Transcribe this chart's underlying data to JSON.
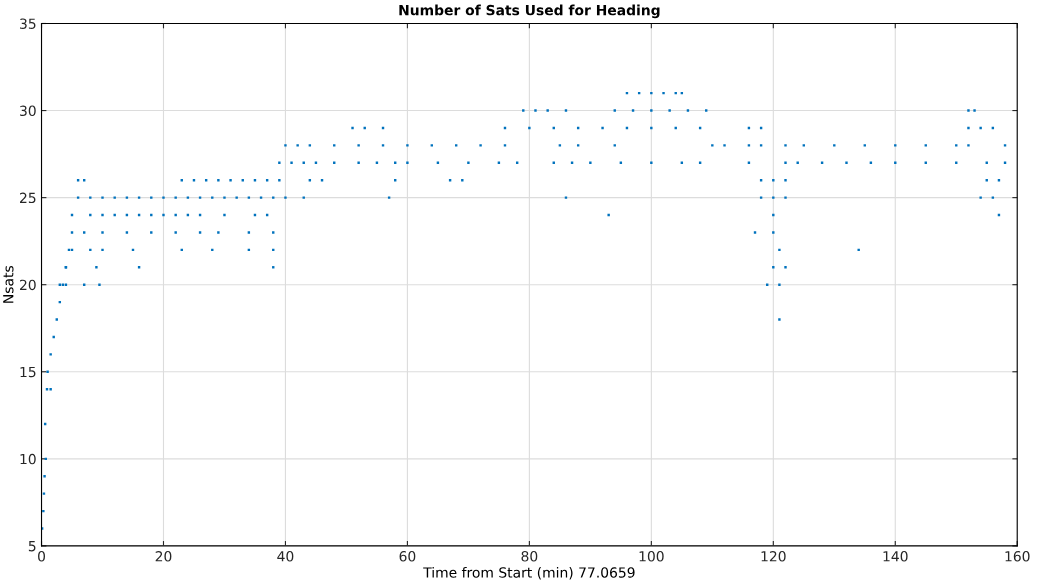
{
  "chart_data": {
    "type": "scatter",
    "title": "Number of Sats Used for Heading",
    "xlabel": "Time from Start (min) 77.0659",
    "ylabel": "Nsats",
    "xlim": [
      0,
      160
    ],
    "ylim": [
      5,
      35
    ],
    "xticks": [
      0,
      20,
      40,
      60,
      80,
      100,
      120,
      140,
      160
    ],
    "yticks": [
      5,
      10,
      15,
      20,
      25,
      30,
      35
    ],
    "grid": true,
    "marker": "square",
    "series": [
      {
        "color": "#0072bd",
        "x": [
          0.1,
          0.3,
          0.4,
          0.5,
          0.7,
          0.6,
          0.9,
          1.5,
          1,
          1.5,
          2,
          2.5,
          3,
          3.5,
          4,
          4.5,
          5,
          8,
          10,
          12,
          14,
          16,
          18,
          20,
          22,
          24,
          26,
          30,
          35,
          37,
          93,
          120,
          157,
          6,
          8,
          10,
          12,
          14,
          16,
          18,
          20,
          22,
          24,
          26,
          28,
          30,
          32,
          34,
          36,
          38,
          40,
          43,
          57,
          86,
          118,
          120,
          122,
          154,
          156,
          6,
          7,
          23,
          25,
          27,
          29,
          31,
          33,
          35,
          37,
          39,
          44,
          46,
          58,
          67,
          69,
          118,
          120,
          122,
          155,
          157,
          39,
          41,
          43,
          45,
          48,
          52,
          55,
          58,
          60,
          65,
          70,
          75,
          78,
          84,
          87,
          90,
          95,
          100,
          105,
          108,
          116,
          122,
          124,
          128,
          132,
          136,
          140,
          145,
          150,
          155,
          158,
          40,
          42,
          44,
          48,
          52,
          56,
          60,
          64,
          68,
          72,
          76,
          85,
          88,
          94,
          110,
          112,
          116,
          118,
          122,
          125,
          130,
          135,
          140,
          145,
          150,
          152,
          158,
          51,
          53,
          56,
          76,
          80,
          84,
          88,
          92,
          96,
          100,
          104,
          108,
          116,
          118,
          152,
          154,
          156,
          79,
          81,
          83,
          86,
          94,
          97,
          100,
          103,
          106,
          109,
          152,
          153,
          96,
          98,
          100,
          102,
          104,
          105,
          5,
          7,
          10,
          14,
          18,
          22,
          26,
          29,
          34,
          38,
          117,
          120,
          5,
          8,
          10,
          15,
          23,
          28,
          34,
          38,
          121,
          134,
          4,
          9,
          16,
          38,
          120,
          122,
          3,
          4,
          7,
          9.5,
          119,
          121,
          121
        ],
        "values": [
          6,
          7,
          8,
          9,
          10,
          12,
          14,
          14,
          15,
          16,
          17,
          18,
          19,
          20,
          21,
          22,
          24,
          24,
          24,
          24,
          24,
          24,
          24,
          24,
          24,
          24,
          24,
          24,
          24,
          24,
          24,
          24,
          24,
          25,
          25,
          25,
          25,
          25,
          25,
          25,
          25,
          25,
          25,
          25,
          25,
          25,
          25,
          25,
          25,
          25,
          25,
          25,
          25,
          25,
          25,
          25,
          25,
          25,
          25,
          26,
          26,
          26,
          26,
          26,
          26,
          26,
          26,
          26,
          26,
          26,
          26,
          26,
          26,
          26,
          26,
          26,
          26,
          26,
          26,
          26,
          27,
          27,
          27,
          27,
          27,
          27,
          27,
          27,
          27,
          27,
          27,
          27,
          27,
          27,
          27,
          27,
          27,
          27,
          27,
          27,
          27,
          27,
          27,
          27,
          27,
          27,
          27,
          27,
          27,
          27,
          27,
          28,
          28,
          28,
          28,
          28,
          28,
          28,
          28,
          28,
          28,
          28,
          28,
          28,
          28,
          28,
          28,
          28,
          28,
          28,
          28,
          28,
          28,
          28,
          28,
          28,
          28,
          28,
          29,
          29,
          29,
          29,
          29,
          29,
          29,
          29,
          29,
          29,
          29,
          29,
          29,
          29,
          29,
          29,
          29,
          30,
          30,
          30,
          30,
          30,
          30,
          30,
          30,
          30,
          30,
          30,
          30,
          31,
          31,
          31,
          31,
          31,
          31,
          23,
          23,
          23,
          23,
          23,
          23,
          23,
          23,
          23,
          23,
          23,
          23,
          22,
          22,
          22,
          22,
          22,
          22,
          22,
          22,
          22,
          22,
          21,
          21,
          21,
          21,
          21,
          21,
          20,
          20,
          20,
          20,
          20,
          20,
          18
        ]
      }
    ]
  }
}
